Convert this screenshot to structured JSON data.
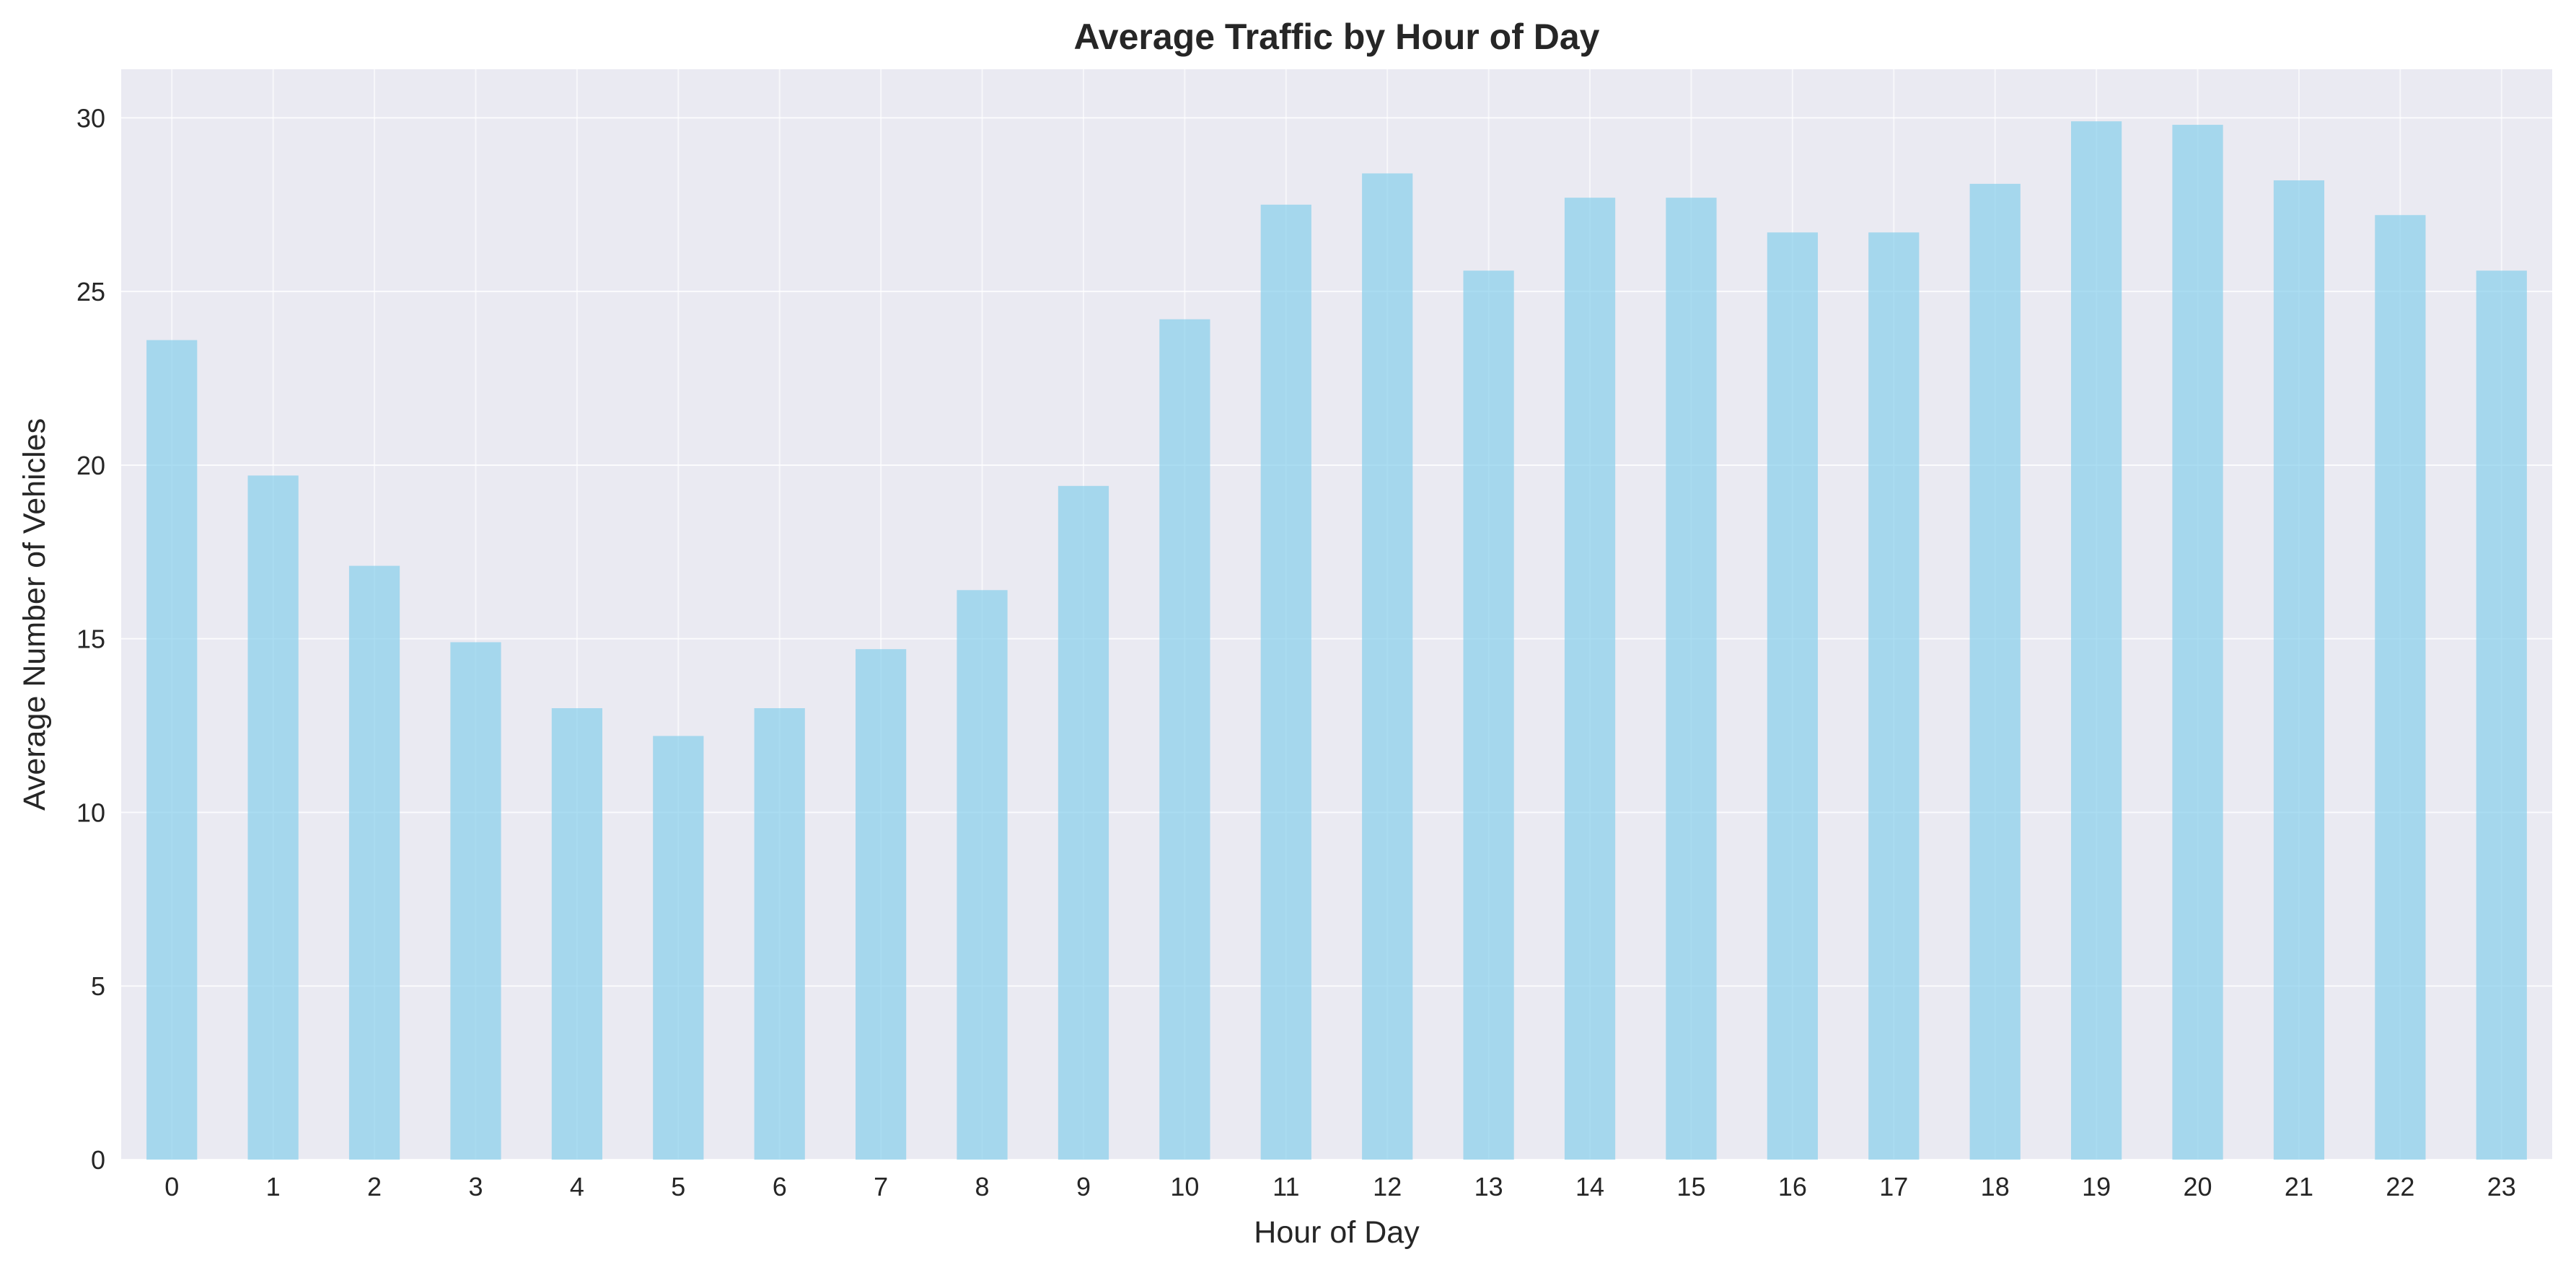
{
  "chart_data": {
    "type": "bar",
    "title": "Average Traffic by Hour of Day",
    "xlabel": "Hour of Day",
    "ylabel": "Average Number of Vehicles",
    "categories": [
      "0",
      "1",
      "2",
      "3",
      "4",
      "5",
      "6",
      "7",
      "8",
      "9",
      "10",
      "11",
      "12",
      "13",
      "14",
      "15",
      "16",
      "17",
      "18",
      "19",
      "20",
      "21",
      "22",
      "23"
    ],
    "values": [
      23.6,
      19.7,
      17.1,
      14.9,
      13.0,
      12.2,
      13.0,
      14.7,
      16.4,
      19.4,
      24.2,
      27.5,
      28.4,
      25.6,
      27.7,
      27.7,
      26.7,
      26.7,
      28.1,
      29.9,
      29.8,
      28.2,
      27.2,
      25.6
    ],
    "ylim": [
      0,
      31.4
    ],
    "yticks": [
      0,
      5,
      10,
      15,
      20,
      25,
      30
    ],
    "grid": true,
    "legend": "none",
    "colors": {
      "bar": "#87ceeb",
      "plot_background": "#eaeaf2",
      "grid": "#ffffff",
      "text": "#262626"
    }
  }
}
